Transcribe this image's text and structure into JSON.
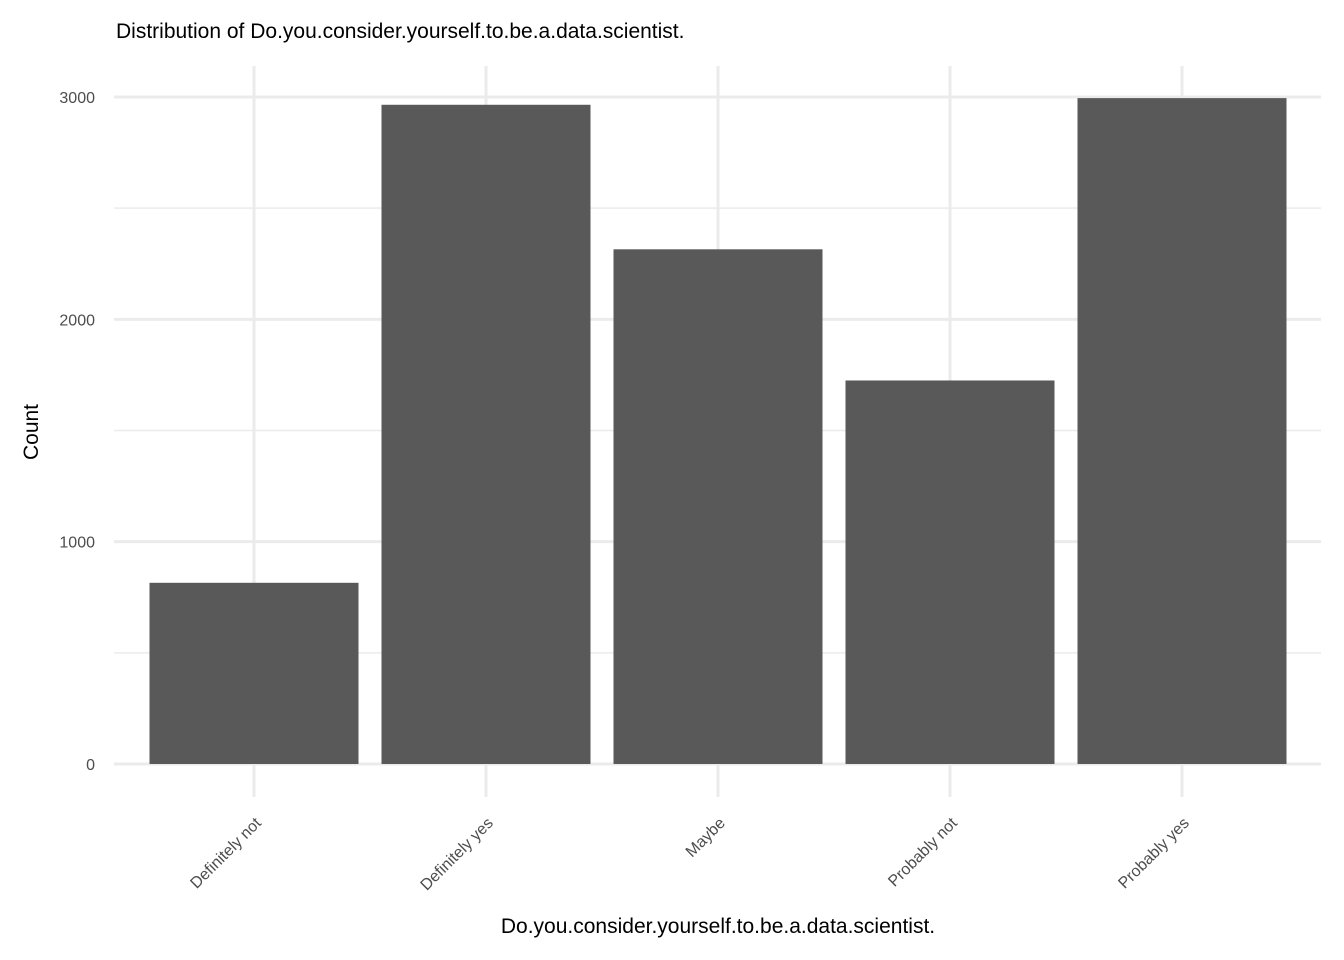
{
  "chart_data": {
    "type": "bar",
    "title": "Distribution of Do.you.consider.yourself.to.be.a.data.scientist.",
    "xlabel": "Do.you.consider.yourself.to.be.a.data.scientist.",
    "ylabel": "Count",
    "categories": [
      "Definitely not",
      "Definitely yes",
      "Maybe",
      "Probably not",
      "Probably yes"
    ],
    "values": [
      815,
      2965,
      2315,
      1725,
      2995
    ],
    "ylim": [
      0,
      3000
    ],
    "yticks": [
      "0",
      "1000",
      "2000",
      "3000"
    ],
    "grid": true,
    "legend": "none",
    "colors": {
      "bar": "#595959",
      "grid": "#ebebeb"
    }
  }
}
